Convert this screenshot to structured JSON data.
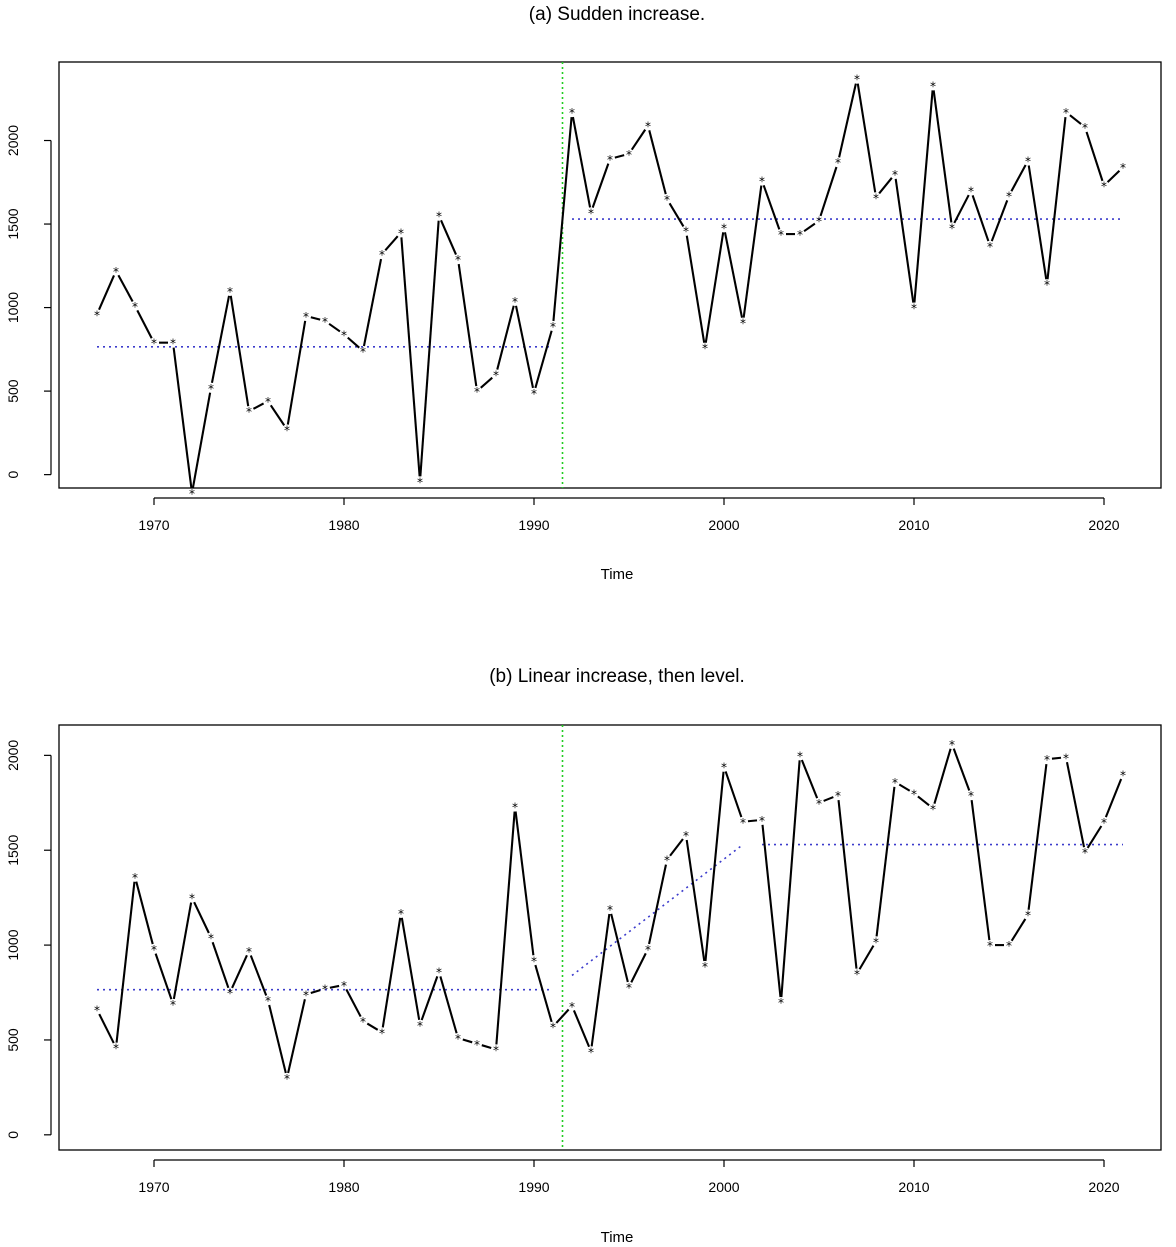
{
  "colors": {
    "series": "#000000",
    "fit": "#3c3ccc",
    "changepoint": "#22cc22"
  },
  "chart_data": [
    {
      "type": "line",
      "title": "(a) Sudden increase.",
      "xlabel": "Time",
      "ylabel": "",
      "xlim": [
        1965,
        2023
      ],
      "ylim": [
        -80,
        2470
      ],
      "xticks": [
        1970,
        1980,
        1990,
        2000,
        2010,
        2020
      ],
      "yticks": [
        0,
        500,
        1000,
        1500,
        2000
      ],
      "marker": "*",
      "grid": false,
      "legend": "none",
      "x": [
        1967,
        1968,
        1969,
        1970,
        1971,
        1972,
        1973,
        1974,
        1975,
        1976,
        1977,
        1978,
        1979,
        1980,
        1981,
        1982,
        1983,
        1984,
        1985,
        1986,
        1987,
        1988,
        1989,
        1990,
        1991,
        1992,
        1993,
        1994,
        1995,
        1996,
        1997,
        1998,
        1999,
        2000,
        2001,
        2002,
        2003,
        2004,
        2005,
        2006,
        2007,
        2008,
        2009,
        2010,
        2011,
        2012,
        2013,
        2014,
        2015,
        2016,
        2017,
        2018,
        2019,
        2020,
        2021
      ],
      "y": [
        960,
        1220,
        1010,
        790,
        790,
        -110,
        520,
        1100,
        380,
        440,
        270,
        950,
        920,
        840,
        740,
        1320,
        1450,
        -40,
        1550,
        1290,
        500,
        600,
        1040,
        490,
        890,
        2170,
        1570,
        1890,
        1920,
        2090,
        1650,
        1460,
        760,
        1480,
        910,
        1760,
        1440,
        1440,
        1520,
        1870,
        2370,
        1660,
        1800,
        1000,
        2330,
        1480,
        1700,
        1370,
        1670,
        1880,
        1140,
        2170,
        2080,
        1730,
        1840
      ],
      "fit": [
        {
          "x": [
            1967,
            1991
          ],
          "y": [
            765,
            765
          ]
        },
        {
          "x": [
            1992,
            2021
          ],
          "y": [
            1530,
            1530
          ]
        }
      ],
      "changepoint_x": 1991.5
    },
    {
      "type": "line",
      "title": "(b) Linear increase, then level.",
      "xlabel": "Time",
      "ylabel": "",
      "xlim": [
        1965,
        2023
      ],
      "ylim": [
        -80,
        2160
      ],
      "xticks": [
        1970,
        1980,
        1990,
        2000,
        2010,
        2020
      ],
      "yticks": [
        0,
        500,
        1000,
        1500,
        2000
      ],
      "marker": "*",
      "grid": false,
      "legend": "none",
      "x": [
        1967,
        1968,
        1969,
        1970,
        1971,
        1972,
        1973,
        1974,
        1975,
        1976,
        1977,
        1978,
        1979,
        1980,
        1981,
        1982,
        1983,
        1984,
        1985,
        1986,
        1987,
        1988,
        1989,
        1990,
        1991,
        1992,
        1993,
        1994,
        1995,
        1996,
        1997,
        1998,
        1999,
        2000,
        2001,
        2002,
        2003,
        2004,
        2005,
        2006,
        2007,
        2008,
        2009,
        2010,
        2011,
        2012,
        2013,
        2014,
        2015,
        2016,
        2017,
        2018,
        2019,
        2020,
        2021
      ],
      "y": [
        660,
        460,
        1360,
        980,
        690,
        1250,
        1040,
        750,
        970,
        710,
        300,
        740,
        770,
        790,
        600,
        540,
        1170,
        580,
        860,
        510,
        480,
        450,
        1730,
        920,
        570,
        680,
        440,
        1190,
        780,
        980,
        1450,
        1580,
        890,
        1940,
        1650,
        1660,
        700,
        2000,
        1750,
        1790,
        850,
        1020,
        1860,
        1800,
        1720,
        2060,
        1790,
        1000,
        1000,
        1160,
        1980,
        1990,
        1490,
        1650,
        1900
      ],
      "fit": [
        {
          "x": [
            1967,
            1991
          ],
          "y": [
            765,
            765
          ]
        },
        {
          "x": [
            1992,
            2001
          ],
          "y": [
            840,
            1530
          ]
        },
        {
          "x": [
            2002,
            2021
          ],
          "y": [
            1530,
            1530
          ]
        }
      ],
      "changepoint_x": 1991.5
    }
  ]
}
